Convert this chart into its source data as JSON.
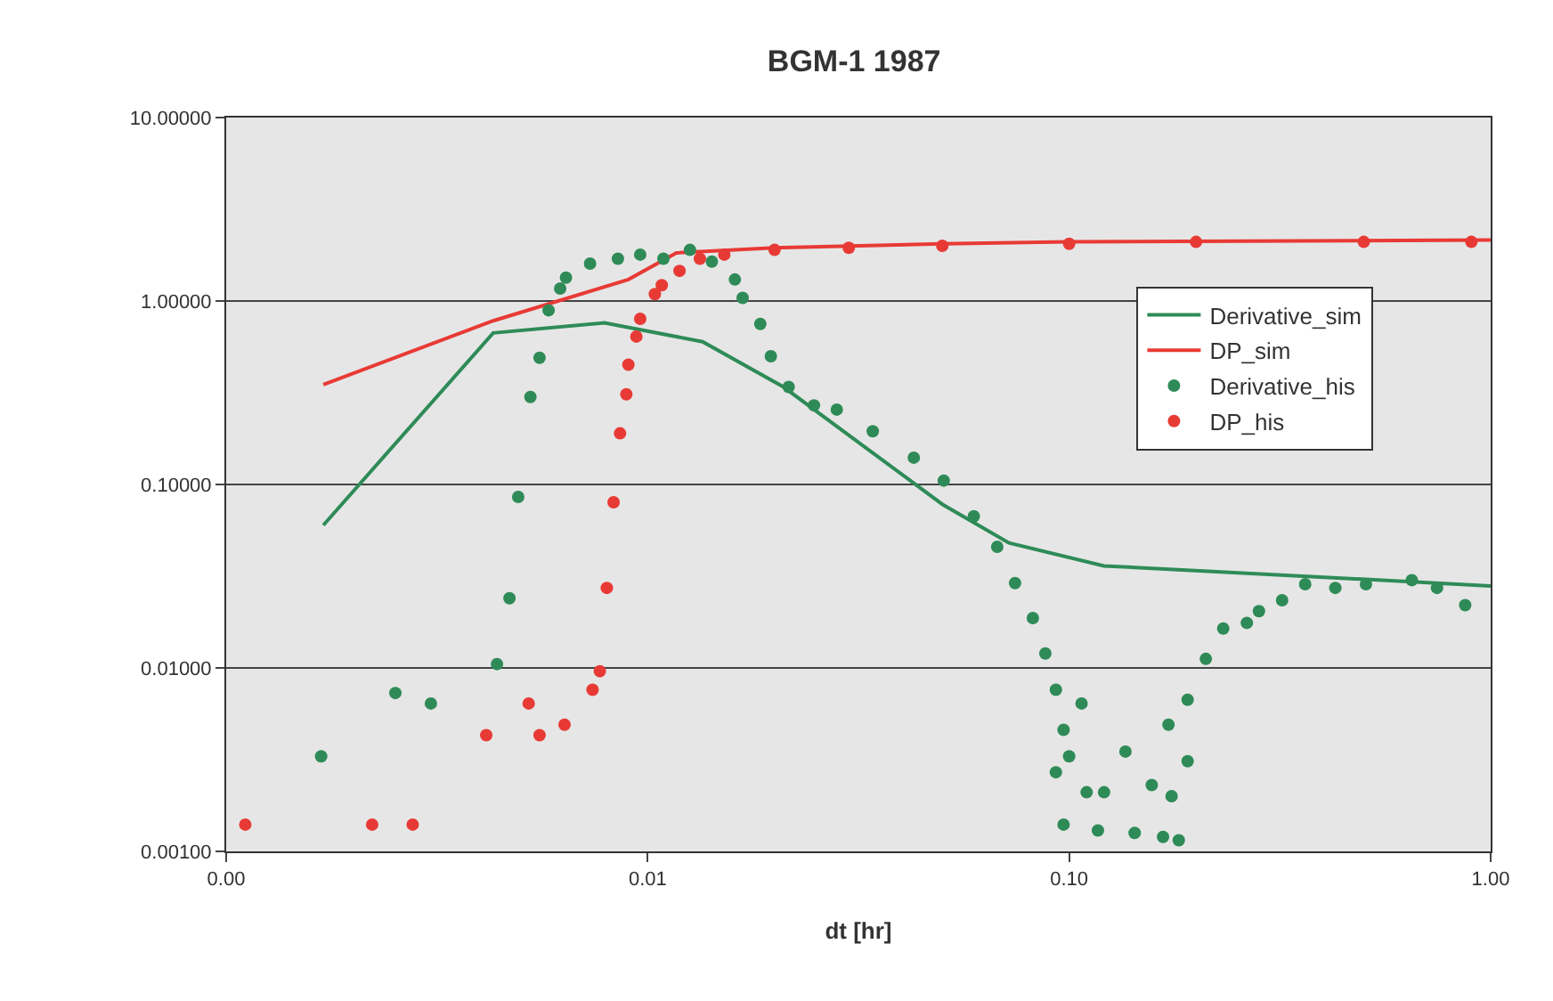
{
  "chart_data": {
    "type": "scatter",
    "title": "BGM-1 1987",
    "xlabel": "dt [hr]",
    "log": "xy",
    "grid": "y",
    "legend": "right",
    "line_style": "solid",
    "xlim": [
      0.001,
      1
    ],
    "xticks": [
      {
        "value": 0.001,
        "label": "0.00"
      },
      {
        "value": 0.01,
        "label": "0.01"
      },
      {
        "value": 0.1,
        "label": "0.10"
      },
      {
        "value": 1,
        "label": "1.00"
      }
    ],
    "ylim": [
      0.001,
      10
    ],
    "yticks": [
      {
        "value": 0.001,
        "label": "0.00100"
      },
      {
        "value": 0.01,
        "label": "0.01000"
      },
      {
        "value": 0.1,
        "label": "0.10000"
      },
      {
        "value": 1,
        "label": "1.00000"
      },
      {
        "value": 10,
        "label": "10.00000"
      }
    ],
    "series": [
      {
        "name": "Derivative_sim",
        "type": "line",
        "color": "#2e8b57",
        "x": [
          0.0017,
          0.0043,
          0.0079,
          0.0135,
          0.021,
          0.05,
          0.072,
          0.121,
          1
        ],
        "values": [
          0.06,
          0.67,
          0.76,
          0.6,
          0.34,
          0.078,
          0.048,
          0.036,
          0.028
        ]
      },
      {
        "name": "DP_sim",
        "type": "line",
        "color": "#e83a35",
        "x": [
          0.0017,
          0.0043,
          0.009,
          0.0117,
          0.02,
          0.05,
          0.1,
          1
        ],
        "values": [
          0.35,
          0.78,
          1.31,
          1.83,
          1.95,
          2.05,
          2.1,
          2.15
        ]
      },
      {
        "name": "Derivative_his",
        "marker": "circle",
        "color": "#2e8b57",
        "x": [
          0.00168,
          0.00252,
          0.00306,
          0.00439,
          0.0047,
          0.00493,
          0.00527,
          0.00554,
          0.00582,
          0.0062,
          0.0064,
          0.0073,
          0.0085,
          0.0096,
          0.0109,
          0.0126,
          0.0142,
          0.0161,
          0.0168,
          0.0185,
          0.0196,
          0.0216,
          0.0248,
          0.0281,
          0.0342,
          0.0428,
          0.0504,
          0.0594,
          0.0675,
          0.0744,
          0.082,
          0.0878,
          0.093,
          0.107,
          0.097,
          0.1,
          0.093,
          0.11,
          0.121,
          0.097,
          0.117,
          0.143,
          0.136,
          0.167,
          0.182,
          0.157,
          0.175,
          0.191,
          0.172,
          0.191,
          0.211,
          0.232,
          0.264,
          0.282,
          0.32,
          0.363,
          0.428,
          0.506,
          0.65,
          0.746,
          0.87
        ],
        "values": [
          0.0033,
          0.0073,
          0.0064,
          0.0105,
          0.024,
          0.0855,
          0.3,
          0.49,
          0.89,
          1.17,
          1.34,
          1.6,
          1.7,
          1.79,
          1.7,
          1.9,
          1.64,
          1.31,
          1.04,
          0.75,
          0.5,
          0.34,
          0.27,
          0.256,
          0.195,
          0.14,
          0.105,
          0.067,
          0.0457,
          0.029,
          0.0187,
          0.012,
          0.0076,
          0.0064,
          0.0046,
          0.0033,
          0.0027,
          0.0021,
          0.0021,
          0.0014,
          0.0013,
          0.00126,
          0.0035,
          0.0012,
          0.00115,
          0.0023,
          0.002,
          0.0031,
          0.0049,
          0.0067,
          0.0112,
          0.0164,
          0.0176,
          0.0204,
          0.0234,
          0.0286,
          0.0273,
          0.0286,
          0.0301,
          0.0273,
          0.022
        ]
      },
      {
        "name": "DP_his",
        "marker": "circle",
        "color": "#e83a35",
        "x": [
          0.00111,
          0.00222,
          0.00277,
          0.00414,
          0.00522,
          0.00554,
          0.00635,
          0.0074,
          0.0077,
          0.008,
          0.0083,
          0.0086,
          0.0089,
          0.009,
          0.0094,
          0.0096,
          0.0104,
          0.0108,
          0.0119,
          0.0133,
          0.0152,
          0.02,
          0.03,
          0.05,
          0.1,
          0.2,
          0.5,
          0.9
        ],
        "values": [
          0.0014,
          0.0014,
          0.0014,
          0.0043,
          0.0064,
          0.0043,
          0.0049,
          0.0076,
          0.0096,
          0.0273,
          0.08,
          0.19,
          0.31,
          0.45,
          0.64,
          0.8,
          1.09,
          1.22,
          1.46,
          1.7,
          1.79,
          1.9,
          1.95,
          2,
          2.05,
          2.1,
          2.1,
          2.1
        ]
      }
    ]
  }
}
